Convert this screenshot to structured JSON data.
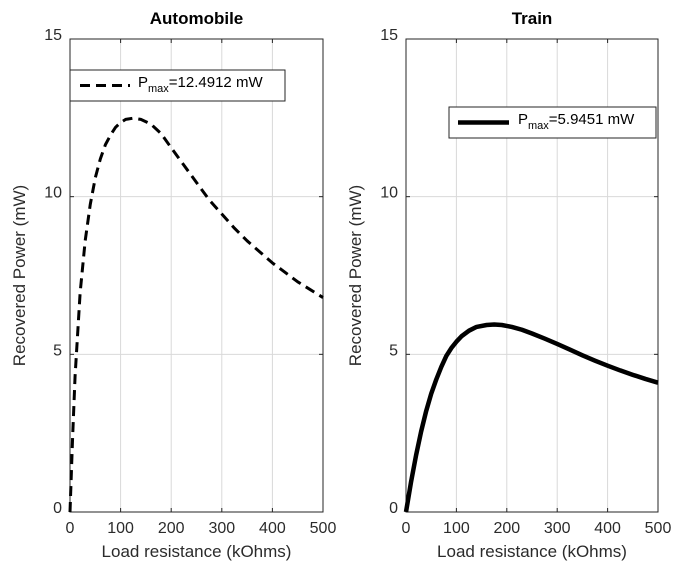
{
  "chart_data": [
    {
      "type": "line",
      "title": "Automobile",
      "xlabel": "Load resistance (kOhms)",
      "ylabel": "Recovered Power (mW)",
      "xlim": [
        0,
        500
      ],
      "ylim": [
        0,
        15
      ],
      "xticks": [
        "0",
        "100",
        "200",
        "300",
        "400",
        "500"
      ],
      "yticks": [
        "0",
        "5",
        "10",
        "15"
      ],
      "grid": true,
      "legend_placement": "top-left",
      "series": [
        {
          "name": "P_max=12.4912 mW",
          "legend": {
            "main": "P",
            "sub": "max",
            "rest": "=12.4912 mW"
          },
          "line_style": "dashed",
          "color": "#000000",
          "x": [
            0,
            5,
            10,
            20,
            30,
            40,
            50,
            60,
            70,
            80,
            90,
            100,
            110,
            125,
            140,
            160,
            180,
            200,
            225,
            250,
            275,
            300,
            325,
            350,
            375,
            400,
            425,
            450,
            475,
            500
          ],
          "y": [
            0,
            2.3,
            4.3,
            6.95,
            8.6,
            9.75,
            10.6,
            11.2,
            11.65,
            11.95,
            12.2,
            12.35,
            12.45,
            12.49,
            12.45,
            12.3,
            12.0,
            11.55,
            11.0,
            10.45,
            9.9,
            9.45,
            9.0,
            8.6,
            8.25,
            7.9,
            7.6,
            7.3,
            7.05,
            6.8
          ]
        }
      ]
    },
    {
      "type": "line",
      "title": "Train",
      "xlabel": "Load resistance (kOhms)",
      "ylabel": "Recovered Power (mW)",
      "xlim": [
        0,
        500
      ],
      "ylim": [
        0,
        15
      ],
      "xticks": [
        "0",
        "100",
        "200",
        "300",
        "400",
        "500"
      ],
      "yticks": [
        "0",
        "5",
        "10",
        "15"
      ],
      "grid": true,
      "legend_placement": "top-right",
      "series": [
        {
          "name": "P_max=5.9451 mW",
          "legend": {
            "main": "P",
            "sub": "max",
            "rest": "=5.9451 mW"
          },
          "line_style": "solid",
          "color": "#000000",
          "x": [
            0,
            10,
            20,
            30,
            40,
            50,
            60,
            70,
            80,
            90,
            100,
            110,
            125,
            140,
            160,
            175,
            190,
            210,
            230,
            250,
            275,
            300,
            325,
            350,
            375,
            400,
            425,
            450,
            475,
            500
          ],
          "y": [
            0,
            0.95,
            1.8,
            2.55,
            3.2,
            3.75,
            4.2,
            4.6,
            4.95,
            5.2,
            5.4,
            5.57,
            5.75,
            5.87,
            5.93,
            5.945,
            5.93,
            5.87,
            5.78,
            5.66,
            5.5,
            5.33,
            5.15,
            4.97,
            4.8,
            4.64,
            4.49,
            4.35,
            4.22,
            4.1
          ]
        }
      ]
    }
  ]
}
